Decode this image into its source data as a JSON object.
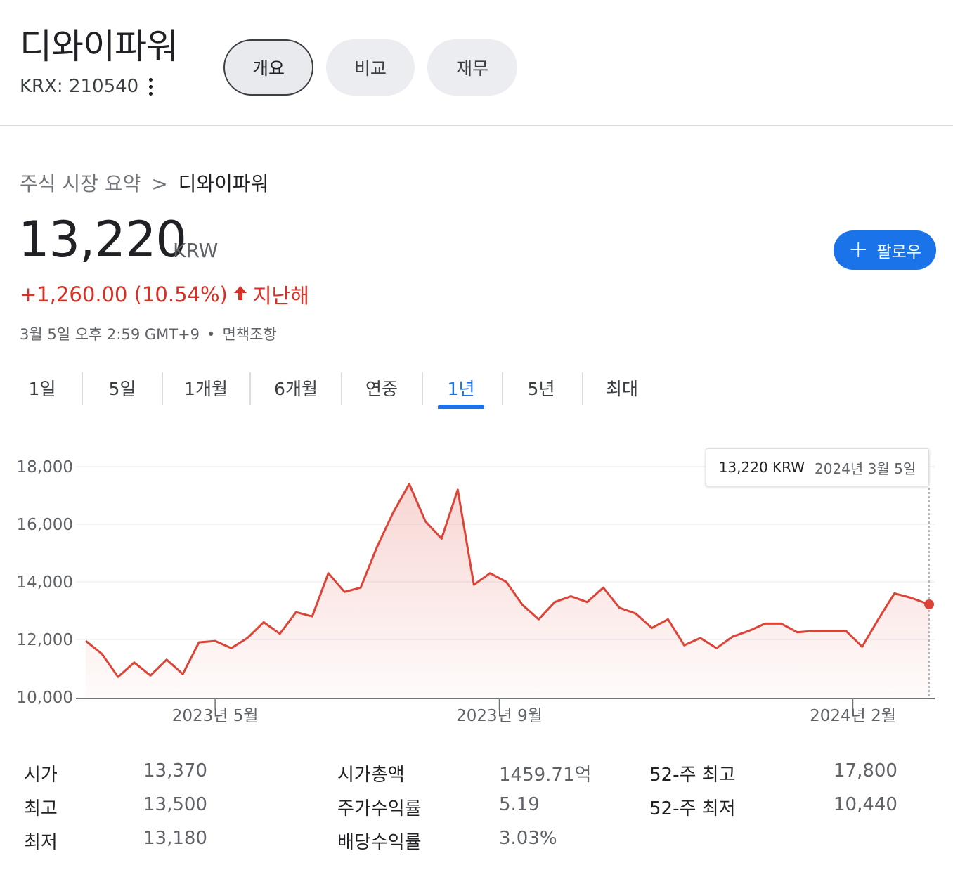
{
  "header": {
    "company": "디와이파워",
    "ticker": "KRX: 210540",
    "tabs": [
      {
        "label": "개요",
        "active": true
      },
      {
        "label": "비교",
        "active": false
      },
      {
        "label": "재무",
        "active": false
      }
    ]
  },
  "breadcrumb": {
    "parent": "주식 시장 요약",
    "separator": ">",
    "current": "디와이파워"
  },
  "quote": {
    "price": "13,220",
    "currency": "KRW",
    "change": "+1,260.00 (10.54%)",
    "change_period": "지난해",
    "timestamp": "3월 5일 오후 2:59 GMT+9",
    "disclaimer": "면책조항",
    "follow_label": "팔로우"
  },
  "ranges": {
    "items": [
      "1일",
      "5일",
      "1개월",
      "6개월",
      "연중",
      "1년",
      "5년",
      "최대"
    ],
    "active": "1년"
  },
  "tooltip": {
    "price": "13,220 KRW",
    "date": "2024년 3월 5일"
  },
  "colors": {
    "line": "#db4437",
    "accent": "#1a73e8",
    "negative": "#d93025"
  },
  "chart_data": {
    "type": "area",
    "y_ticks": [
      "18,000",
      "16,000",
      "14,000",
      "12,000",
      "10,000"
    ],
    "ylim": [
      10000,
      18000
    ],
    "x_ticks": [
      "2023년 5월",
      "2023년 9월",
      "2024년 2월"
    ],
    "x_tick_dates": [
      "2023-05-01",
      "2023-09-01",
      "2024-02-01"
    ],
    "x_range": [
      "2023-03-06",
      "2024-03-05"
    ],
    "grid": true,
    "x": [
      "2023-03-06",
      "2023-03-13",
      "2023-03-20",
      "2023-03-27",
      "2023-04-03",
      "2023-04-10",
      "2023-04-17",
      "2023-04-24",
      "2023-05-01",
      "2023-05-08",
      "2023-05-15",
      "2023-05-22",
      "2023-05-29",
      "2023-06-05",
      "2023-06-12",
      "2023-06-19",
      "2023-06-26",
      "2023-07-03",
      "2023-07-10",
      "2023-07-17",
      "2023-07-24",
      "2023-07-31",
      "2023-08-07",
      "2023-08-14",
      "2023-08-21",
      "2023-08-28",
      "2023-09-04",
      "2023-09-11",
      "2023-09-18",
      "2023-09-25",
      "2023-10-02",
      "2023-10-09",
      "2023-10-16",
      "2023-10-23",
      "2023-10-30",
      "2023-11-06",
      "2023-11-13",
      "2023-11-20",
      "2023-11-27",
      "2023-12-04",
      "2023-12-11",
      "2023-12-18",
      "2023-12-25",
      "2024-01-01",
      "2024-01-08",
      "2024-01-15",
      "2024-01-22",
      "2024-01-29",
      "2024-02-05",
      "2024-02-12",
      "2024-02-19",
      "2024-02-26",
      "2024-03-05"
    ],
    "series": [
      {
        "values": [
          11950,
          11500,
          10700,
          11200,
          10750,
          11300,
          10800,
          11900,
          11950,
          11700,
          12050,
          12600,
          12200,
          12950,
          12800,
          14300,
          13650,
          13800,
          15200,
          16400,
          17400,
          16100,
          15500,
          17200,
          13900,
          14300,
          14000,
          13200,
          12700,
          13300,
          13500,
          13300,
          13800,
          13100,
          12900,
          12400,
          12700,
          11800,
          12050,
          11700,
          12100,
          12300,
          12550,
          12550,
          12250,
          12300,
          12300,
          12300,
          11750,
          12700,
          13600,
          13450,
          13220
        ]
      }
    ]
  },
  "stats": [
    {
      "label": "시가",
      "value": "13,370"
    },
    {
      "label": "최고",
      "value": "13,500"
    },
    {
      "label": "최저",
      "value": "13,180"
    },
    {
      "label": "시가총액",
      "value": "1459.71억"
    },
    {
      "label": "주가수익률",
      "value": "5.19"
    },
    {
      "label": "배당수익률",
      "value": "3.03%"
    },
    {
      "label": "52-주 최고",
      "value": "17,800"
    },
    {
      "label": "52-주 최저",
      "value": "10,440"
    }
  ]
}
